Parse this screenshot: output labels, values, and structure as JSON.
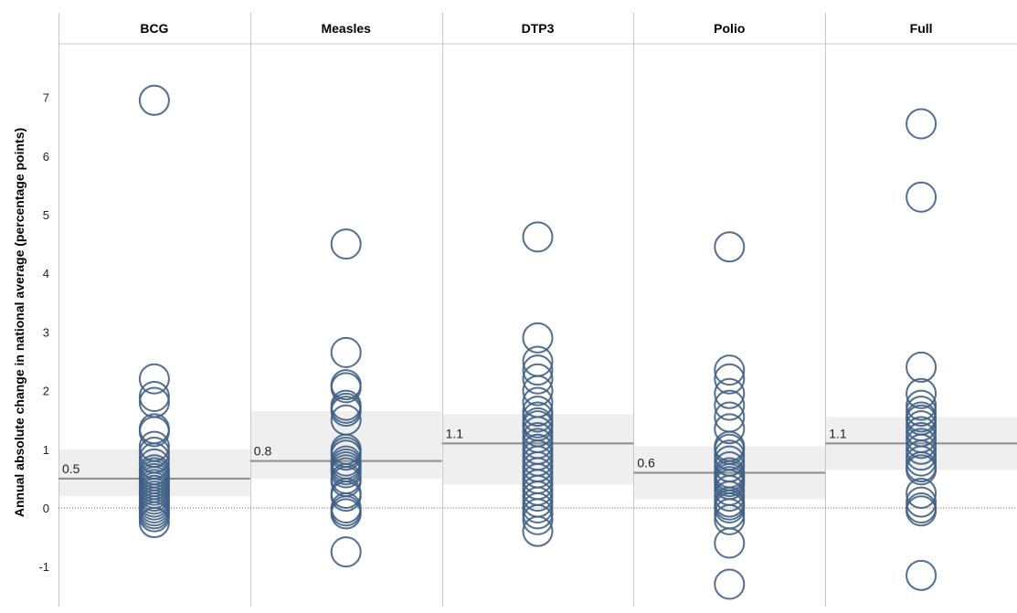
{
  "chart_data": {
    "type": "scatter",
    "ylabel": "Annual absolute change in national average (percentage points)",
    "ylim": [
      -1.7,
      7.9
    ],
    "yticks": [
      -1,
      0,
      1,
      2,
      3,
      4,
      5,
      6,
      7
    ],
    "grid": false,
    "zero_line": true,
    "marker_color": "#3f5f85",
    "band_color": "#efefef",
    "reference_line_color": "#8c8c8c",
    "panels": [
      {
        "name": "BCG",
        "reference_value": 0.5,
        "reference_label": "0.5",
        "band": [
          0.2,
          1.0
        ],
        "values": [
          6.95,
          2.2,
          1.9,
          1.8,
          1.35,
          1.3,
          1.05,
          0.95,
          0.85,
          0.75,
          0.65,
          0.6,
          0.55,
          0.5,
          0.45,
          0.4,
          0.35,
          0.3,
          0.25,
          0.2,
          0.15,
          0.1,
          0.05,
          0.0,
          -0.05,
          -0.1,
          -0.15,
          -0.25
        ]
      },
      {
        "name": "Measles",
        "reference_value": 0.8,
        "reference_label": "0.8",
        "band": [
          0.5,
          1.65
        ],
        "values": [
          4.5,
          2.65,
          2.1,
          2.05,
          1.75,
          1.7,
          1.65,
          1.5,
          1.0,
          0.95,
          0.9,
          0.8,
          0.75,
          0.7,
          0.65,
          0.6,
          0.5,
          0.45,
          0.25,
          0.2,
          0.0,
          -0.05,
          -0.1,
          -0.75
        ]
      },
      {
        "name": "DTP3",
        "reference_value": 1.1,
        "reference_label": "1.1",
        "band": [
          0.4,
          1.6
        ],
        "values": [
          4.62,
          2.9,
          2.5,
          2.35,
          2.2,
          2.0,
          1.8,
          1.65,
          1.55,
          1.45,
          1.4,
          1.3,
          1.2,
          1.1,
          1.0,
          0.9,
          0.8,
          0.7,
          0.6,
          0.5,
          0.4,
          0.3,
          0.2,
          0.1,
          0.0,
          -0.1,
          -0.2,
          -0.4
        ]
      },
      {
        "name": "Polio",
        "reference_value": 0.6,
        "reference_label": "0.6",
        "band": [
          0.15,
          1.05
        ],
        "values": [
          4.45,
          2.35,
          2.2,
          1.95,
          1.75,
          1.55,
          1.35,
          1.05,
          1.0,
          0.9,
          0.8,
          0.7,
          0.6,
          0.55,
          0.5,
          0.45,
          0.4,
          0.3,
          0.2,
          0.1,
          0.05,
          0.0,
          -0.1,
          -0.2,
          -0.6,
          -1.3
        ]
      },
      {
        "name": "Full",
        "reference_value": 1.1,
        "reference_label": "1.1",
        "band": [
          0.65,
          1.55
        ],
        "values": [
          6.55,
          5.3,
          2.4,
          1.95,
          1.75,
          1.65,
          1.55,
          1.5,
          1.4,
          1.3,
          1.2,
          1.1,
          1.0,
          0.9,
          0.8,
          0.7,
          0.65,
          0.25,
          0.1,
          0.0,
          -0.05,
          -1.15
        ]
      }
    ]
  }
}
